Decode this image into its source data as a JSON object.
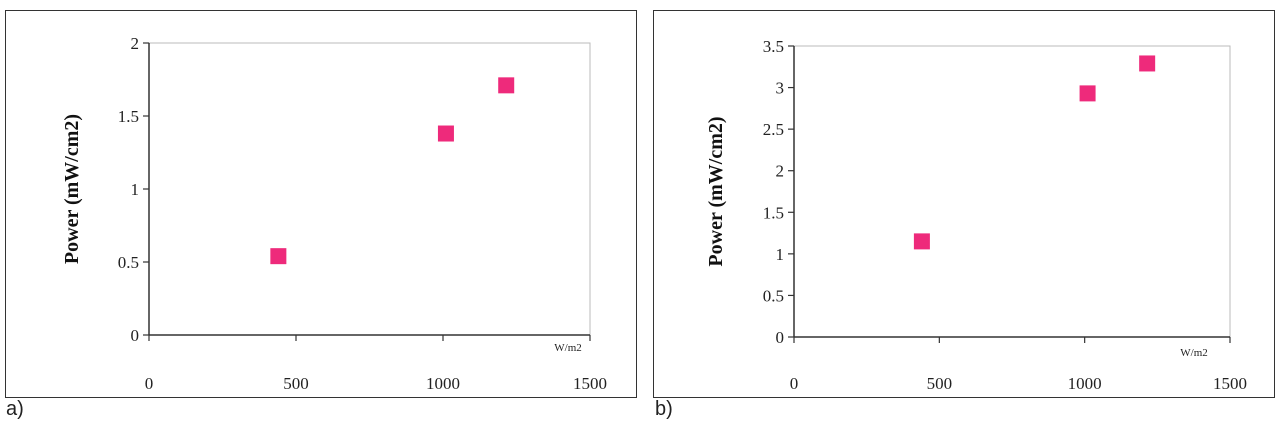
{
  "chart_data": [
    {
      "type": "scatter",
      "panel_label": "a)",
      "ylabel": "Power (mW/cm2)",
      "xunit": "W/m2",
      "xlim": [
        0,
        1500
      ],
      "ylim": [
        0,
        2
      ],
      "xticks": [
        0,
        500,
        1000,
        1500
      ],
      "yticks": [
        0,
        0.5,
        1,
        1.5,
        2
      ],
      "x": [
        440,
        1010,
        1215
      ],
      "y": [
        0.54,
        1.38,
        1.71
      ],
      "marker": "square",
      "marker_color": "#ee2a7b"
    },
    {
      "type": "scatter",
      "panel_label": "b)",
      "ylabel": "Power (mW/cm2)",
      "xunit": "W/m2",
      "xlim": [
        0,
        1500
      ],
      "ylim": [
        0,
        3.5
      ],
      "xticks": [
        0,
        500,
        1000,
        1500
      ],
      "yticks": [
        0,
        0.5,
        1,
        1.5,
        2,
        2.5,
        3,
        3.5
      ],
      "x": [
        440,
        1010,
        1215
      ],
      "y": [
        1.15,
        2.93,
        3.29
      ],
      "marker": "square",
      "marker_color": "#ee2a7b"
    }
  ]
}
